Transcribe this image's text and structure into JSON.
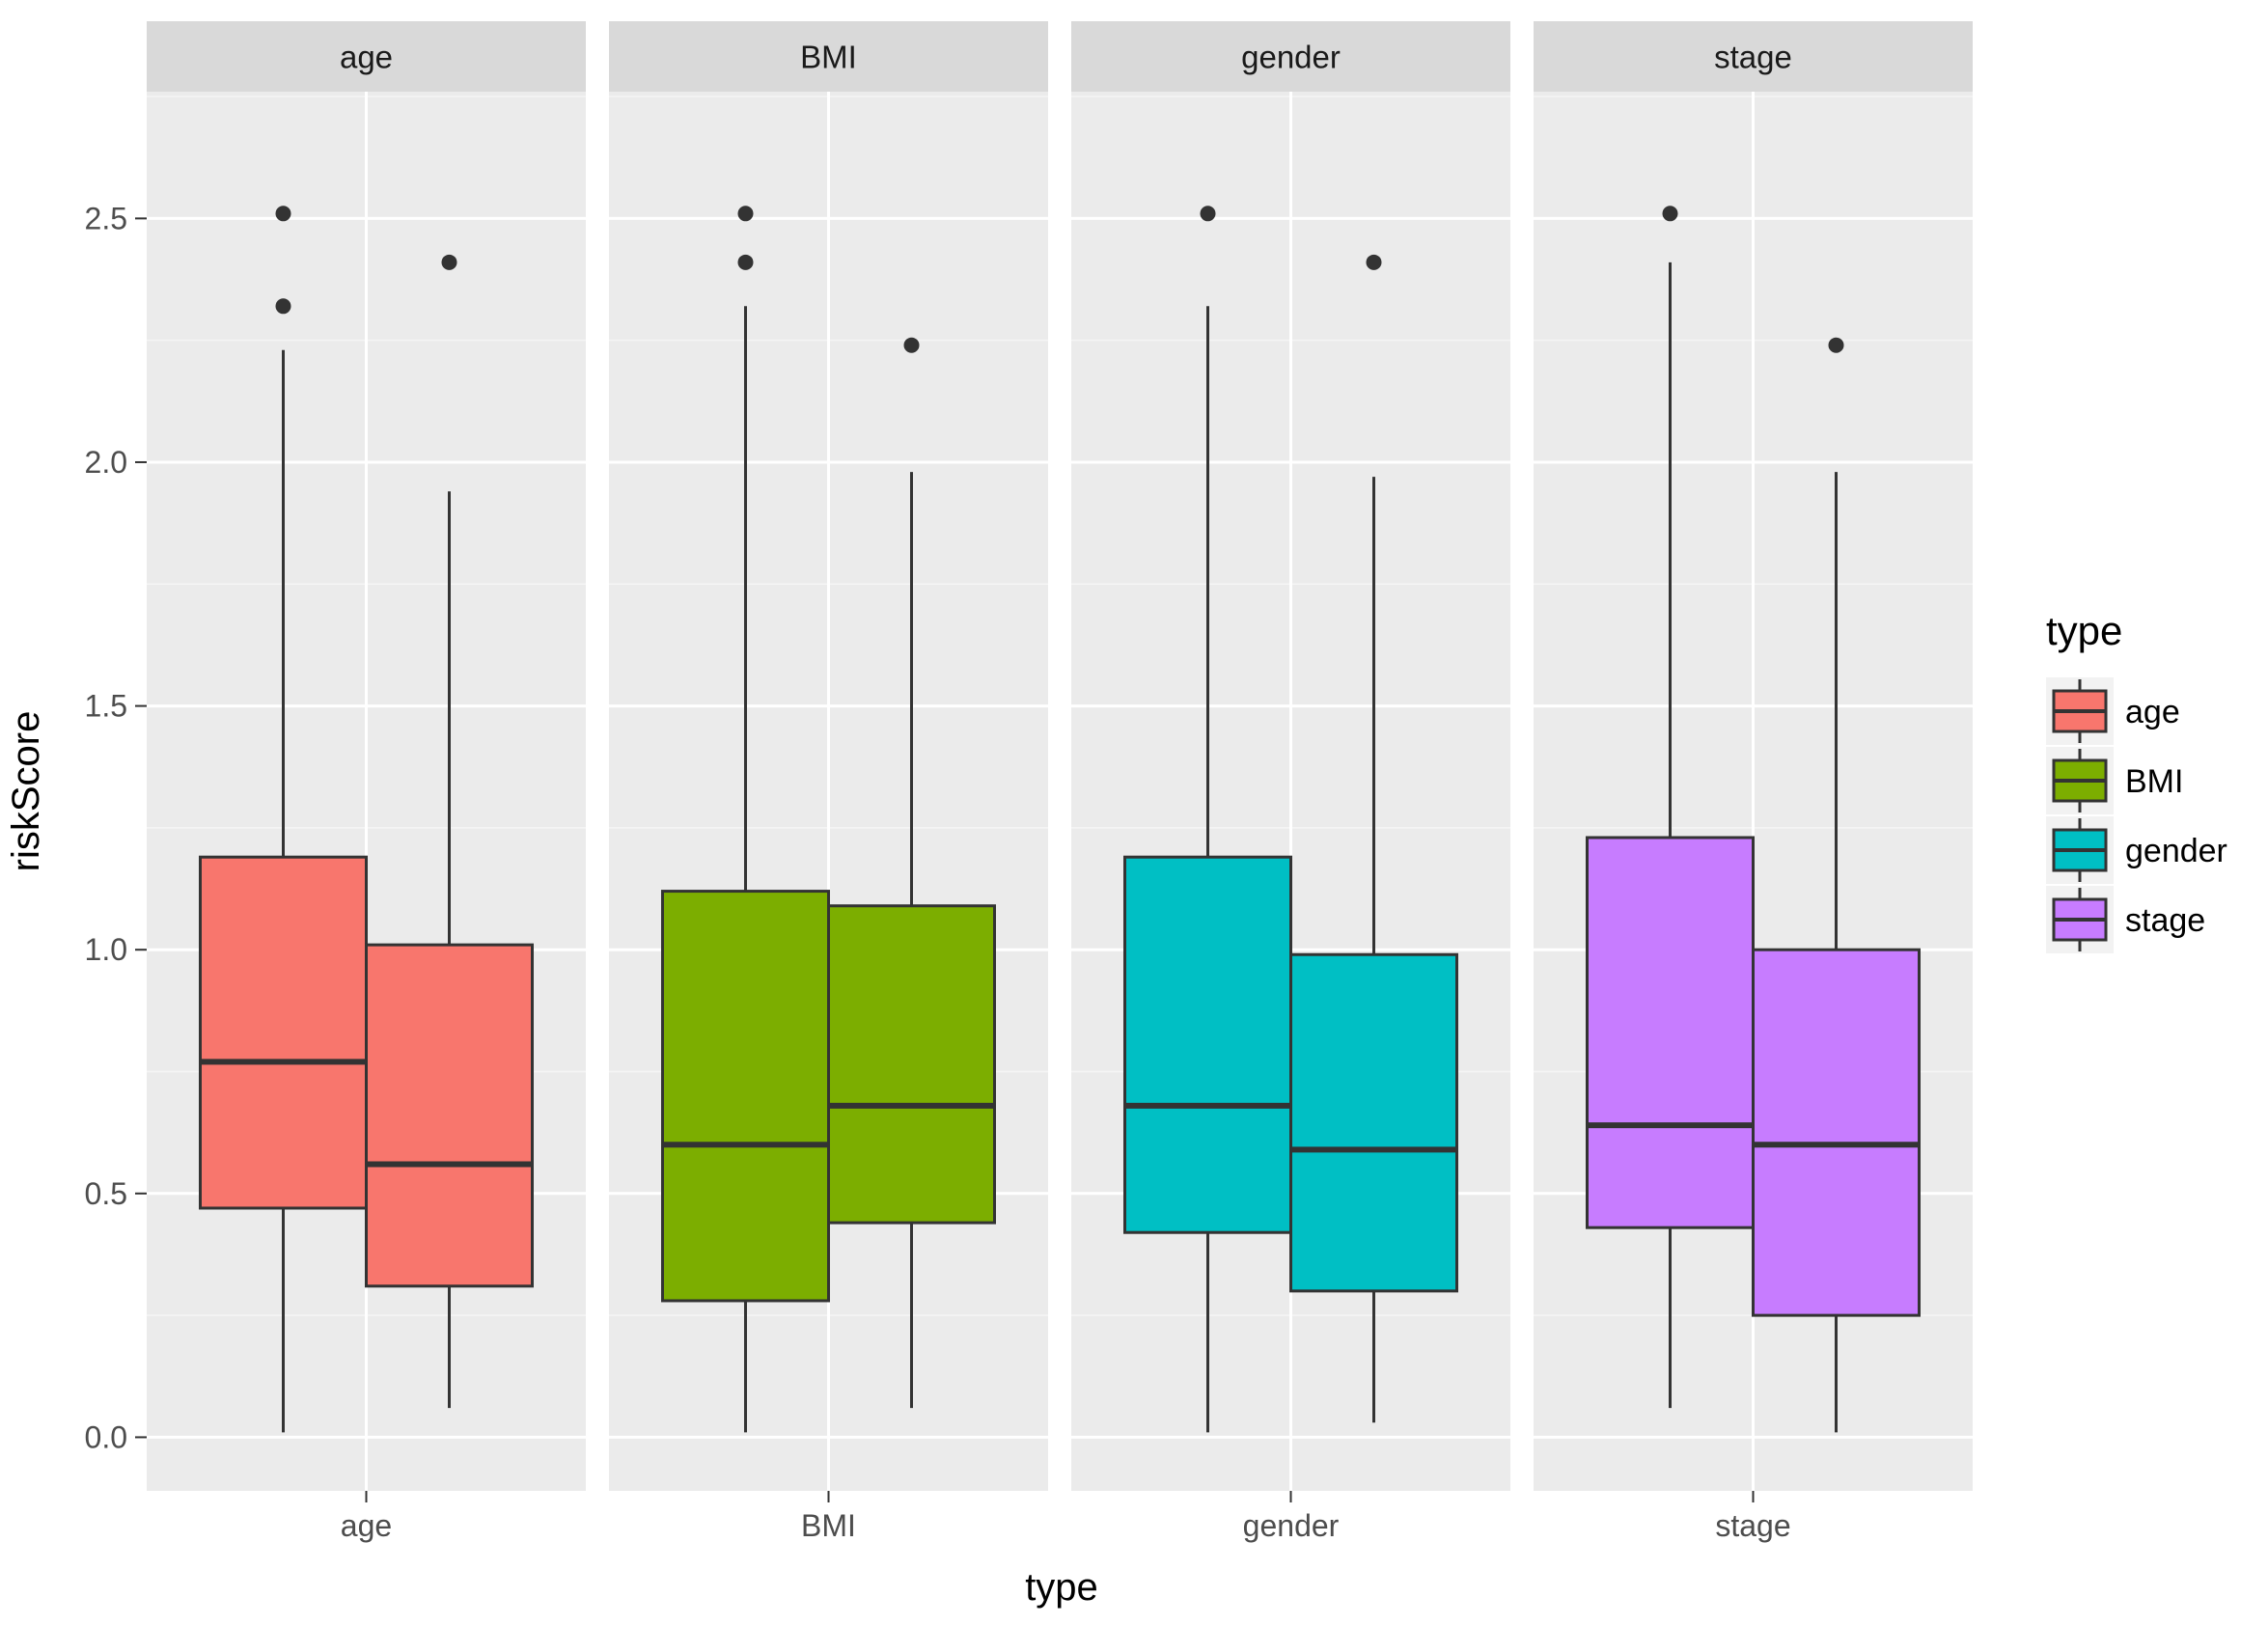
{
  "chart_data": {
    "type": "boxplot",
    "facets": [
      "age",
      "BMI",
      "gender",
      "stage"
    ],
    "xlabel": "type",
    "ylabel": "riskScore",
    "ylim": [
      -0.11,
      2.76
    ],
    "y_ticks": [
      0.0,
      0.5,
      1.0,
      1.5,
      2.0,
      2.5
    ],
    "y_tick_labels": [
      "0.0",
      "0.5",
      "1.0",
      "1.5",
      "2.0",
      "2.5"
    ],
    "legend": {
      "title": "type",
      "position": "right",
      "entries": [
        "age",
        "BMI",
        "gender",
        "stage"
      ]
    },
    "colors": {
      "age": "#F8766D",
      "BMI": "#7CAE00",
      "gender": "#00BFC4",
      "stage": "#C77CFF"
    },
    "series": [
      {
        "facet": "age",
        "boxes": [
          {
            "whisker_low": 0.01,
            "q1": 0.47,
            "median": 0.77,
            "q3": 1.19,
            "whisker_high": 2.23,
            "outliers": [
              2.32,
              2.51
            ]
          },
          {
            "whisker_low": 0.06,
            "q1": 0.31,
            "median": 0.56,
            "q3": 1.01,
            "whisker_high": 1.94,
            "outliers": [
              2.41
            ]
          }
        ]
      },
      {
        "facet": "BMI",
        "boxes": [
          {
            "whisker_low": 0.01,
            "q1": 0.28,
            "median": 0.6,
            "q3": 1.12,
            "whisker_high": 2.32,
            "outliers": [
              2.41,
              2.51
            ]
          },
          {
            "whisker_low": 0.06,
            "q1": 0.44,
            "median": 0.68,
            "q3": 1.09,
            "whisker_high": 1.98,
            "outliers": [
              2.24
            ]
          }
        ]
      },
      {
        "facet": "gender",
        "boxes": [
          {
            "whisker_low": 0.01,
            "q1": 0.42,
            "median": 0.68,
            "q3": 1.19,
            "whisker_high": 2.32,
            "outliers": [
              2.51
            ]
          },
          {
            "whisker_low": 0.03,
            "q1": 0.3,
            "median": 0.59,
            "q3": 0.99,
            "whisker_high": 1.97,
            "outliers": [
              2.41
            ]
          }
        ]
      },
      {
        "facet": "stage",
        "boxes": [
          {
            "whisker_low": 0.06,
            "q1": 0.43,
            "median": 0.64,
            "q3": 1.23,
            "whisker_high": 2.41,
            "outliers": [
              2.51
            ]
          },
          {
            "whisker_low": 0.01,
            "q1": 0.25,
            "median": 0.6,
            "q3": 1.0,
            "whisker_high": 1.98,
            "outliers": [
              2.24
            ]
          }
        ]
      }
    ]
  }
}
